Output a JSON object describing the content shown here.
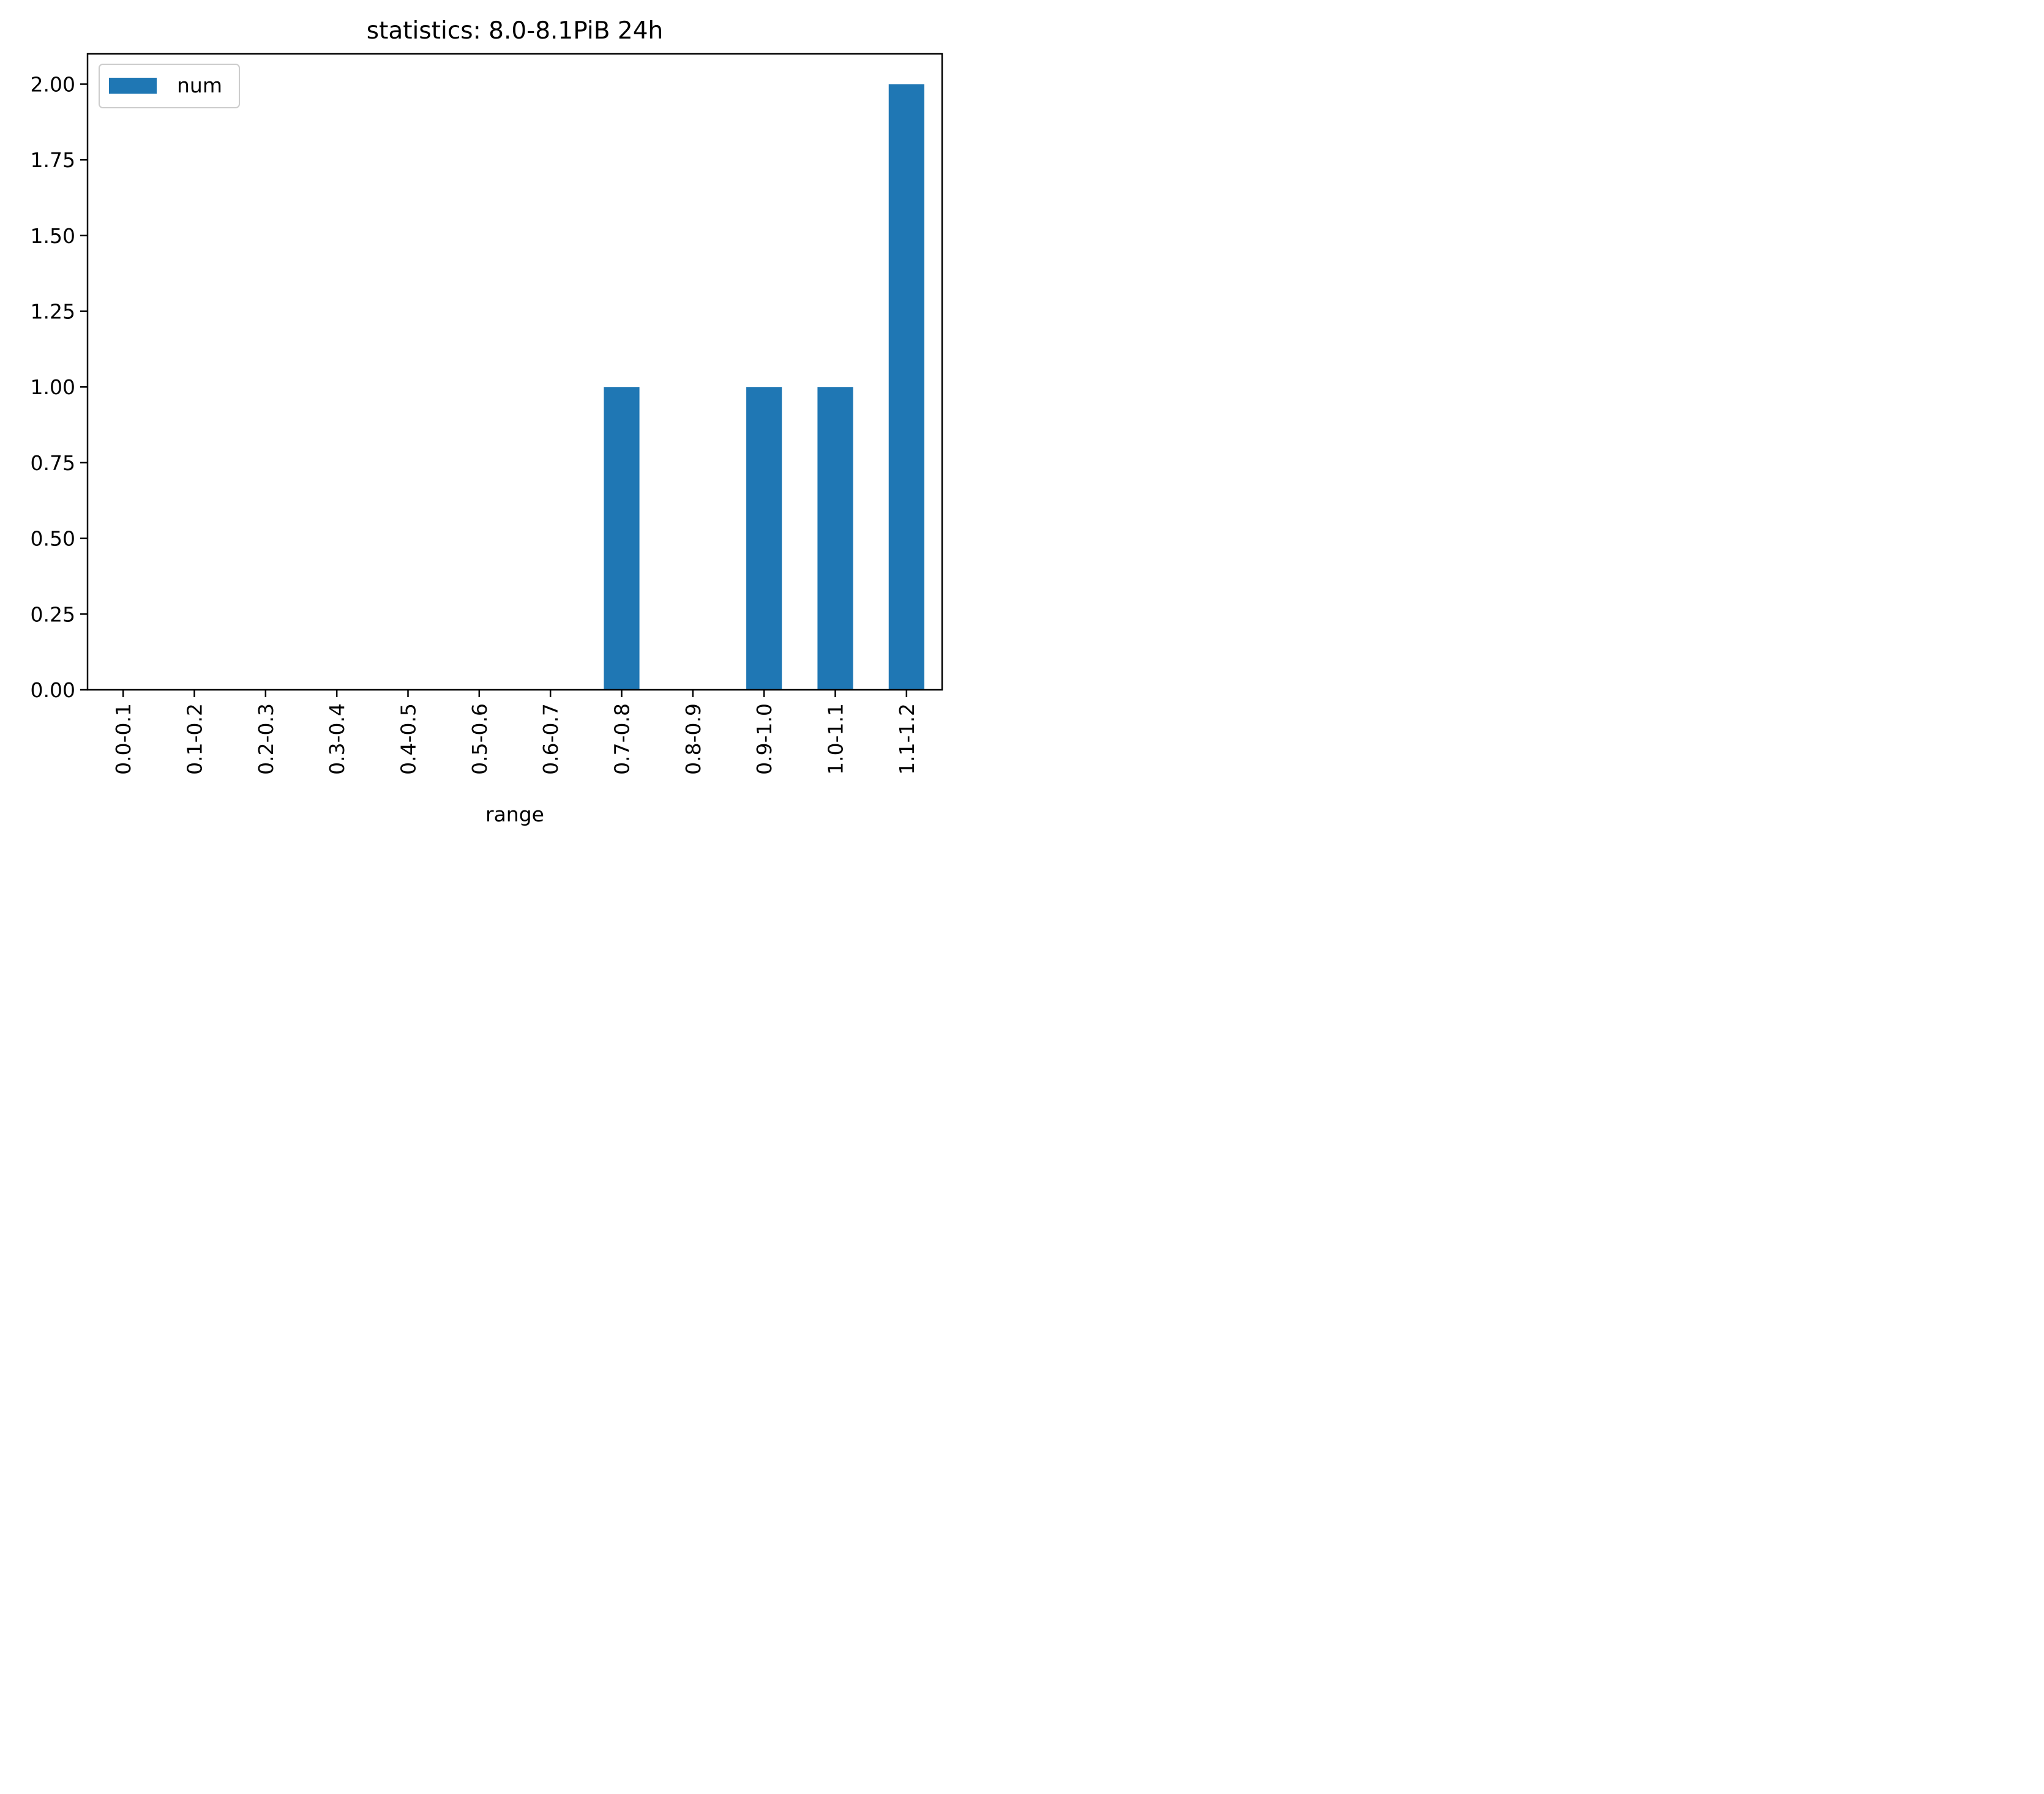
{
  "chart_data": {
    "type": "bar",
    "title": "statistics: 8.0-8.1PiB 24h",
    "xlabel": "range",
    "ylabel": "",
    "categories": [
      "0.0-0.1",
      "0.1-0.2",
      "0.2-0.3",
      "0.3-0.4",
      "0.4-0.5",
      "0.5-0.6",
      "0.6-0.7",
      "0.7-0.8",
      "0.8-0.9",
      "0.9-1.0",
      "1.0-1.1",
      "1.1-1.2"
    ],
    "series": [
      {
        "name": "num",
        "values": [
          0,
          0,
          0,
          0,
          0,
          0,
          0,
          1,
          0,
          1,
          1,
          2
        ],
        "color": "#1f77b4"
      }
    ],
    "ylim": [
      0,
      2.1
    ],
    "yticks": [
      "0.00",
      "0.25",
      "0.50",
      "0.75",
      "1.00",
      "1.25",
      "1.50",
      "1.75",
      "2.00"
    ],
    "grid": false,
    "legend": "top-left"
  }
}
